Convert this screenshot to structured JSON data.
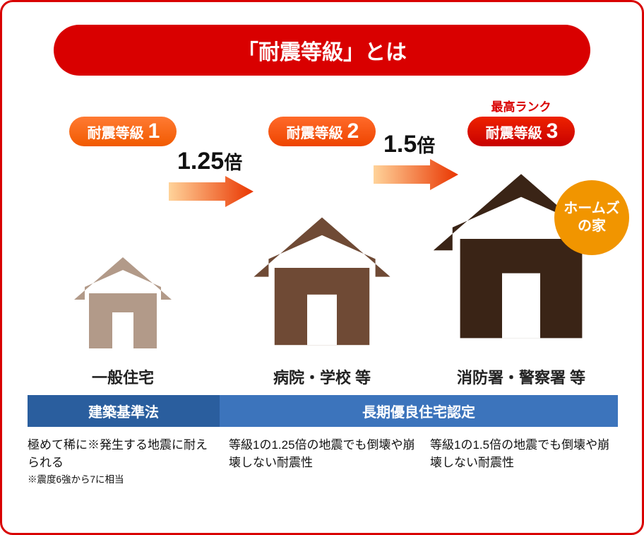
{
  "title": "「耐震等級」とは",
  "multipliers": {
    "m12": "1.25",
    "m23": "1.5",
    "suffix": "倍"
  },
  "badge": "ホームズ\nの家",
  "colors": {
    "border": "#d90000",
    "title_bg": "#d90000",
    "badge_bg": "#f19500",
    "law1_bg": "#2a5e9e",
    "law2_bg": "#3c74bc",
    "arrow_from": "#ffd39a",
    "arrow_to": "#e93500"
  },
  "houses": [
    {
      "color": "#b29a89",
      "size": 130
    },
    {
      "color": "#6f4a35",
      "size": 190
    },
    {
      "color": "#3a2416",
      "size": 250
    }
  ],
  "grades": [
    {
      "top": "",
      "pill_text": "耐震等級",
      "pill_num": "1",
      "pill_class": "g1",
      "building": "一般住宅",
      "desc": "極めて稀に※発生する地震に耐えられる",
      "note": "※震度6強から7に相当"
    },
    {
      "top": "",
      "pill_text": "耐震等級",
      "pill_num": "2",
      "pill_class": "g2",
      "building": "病院・学校 等",
      "desc": "等級1の1.25倍の地震でも倒壊や崩壊しない耐震性",
      "note": ""
    },
    {
      "top": "最高ランク",
      "pill_text": "耐震等級",
      "pill_num": "3",
      "pill_class": "g3",
      "building": "消防署・警察署 等",
      "desc": "等級1の1.5倍の地震でも倒壊や崩壊しない耐震性",
      "note": ""
    }
  ],
  "law": {
    "a": "建築基準法",
    "b": "長期優良住宅認定"
  }
}
